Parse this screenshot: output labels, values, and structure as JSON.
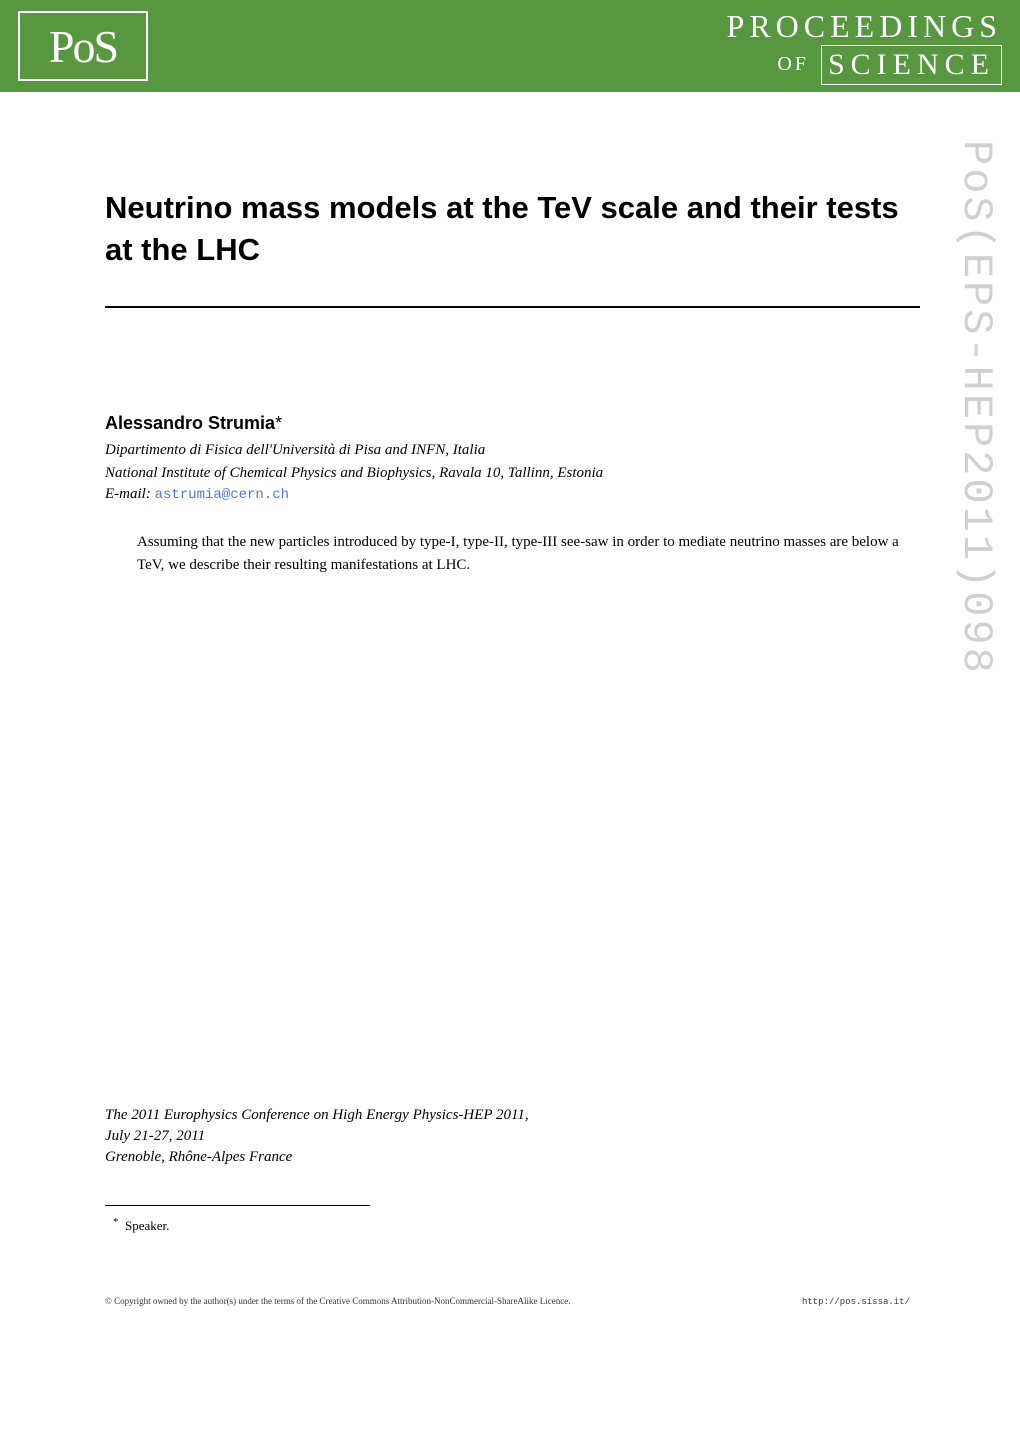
{
  "header": {
    "logo_text": "PoS",
    "proceedings_line": "PROCEEDINGS",
    "of_text": "OF",
    "science_text": "SCIENCE",
    "bg_color": "#569740",
    "text_color": "#ffffff"
  },
  "title": "Neutrino mass models at the TeV scale and their tests at the LHC",
  "author": {
    "name": "Alessandro Strumia",
    "star": "*",
    "affiliation1": "Dipartimento di Fisica dell'Università di Pisa and INFN, Italia",
    "affiliation2": "National Institute of Chemical Physics and Biophysics, Ravala 10, Tallinn, Estonia",
    "email_label": "E-mail:",
    "email": "astrumia@cern.ch"
  },
  "abstract": "Assuming that the new particles introduced by type-I, type-II, type-III see-saw in order to mediate neutrino masses are below a TeV, we describe their resulting manifestations at LHC.",
  "conference": {
    "line1": "The 2011 Europhysics Conference on High Energy Physics-HEP 2011,",
    "line2": "July 21-27, 2011",
    "line3": "Grenoble, Rhône-Alpes France"
  },
  "footnote": {
    "star": "*",
    "text": "Speaker."
  },
  "copyright": {
    "text": "© Copyright owned by the author(s) under the terms of the Creative Commons Attribution-NonCommercial-ShareAlike Licence.",
    "url": "http://pos.sissa.it/"
  },
  "watermark": "PoS(EPS-HEP2011)098",
  "styling": {
    "page_bg": "#ffffff",
    "title_fontsize": 31,
    "title_color": "#000000",
    "author_fontsize": 18,
    "body_fontsize": 15,
    "footnote_fontsize": 13,
    "copyright_fontsize": 9,
    "watermark_color": "#d0d0d0",
    "watermark_fontsize": 42,
    "email_color": "#5577cc",
    "rule_color": "#000000"
  }
}
